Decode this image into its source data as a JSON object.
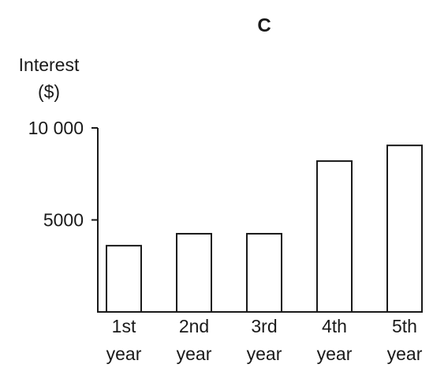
{
  "chart_data": {
    "type": "bar",
    "title": "C",
    "ylabel_line1": "Interest",
    "ylabel_line2": "($)",
    "xlabel": "",
    "categories": [
      [
        "1st",
        "year"
      ],
      [
        "2nd",
        "year"
      ],
      [
        "3rd",
        "year"
      ],
      [
        "4th",
        "year"
      ],
      [
        "5th",
        "year"
      ]
    ],
    "values": [
      3600,
      4250,
      4250,
      8200,
      9050
    ],
    "ylim": [
      0,
      10000
    ],
    "yticks": [
      5000,
      10000
    ],
    "ytick_labels": [
      "5000",
      "10 000"
    ],
    "grid": false,
    "bar_fill": "#ffffff",
    "bar_stroke": "#1a1a1a"
  }
}
